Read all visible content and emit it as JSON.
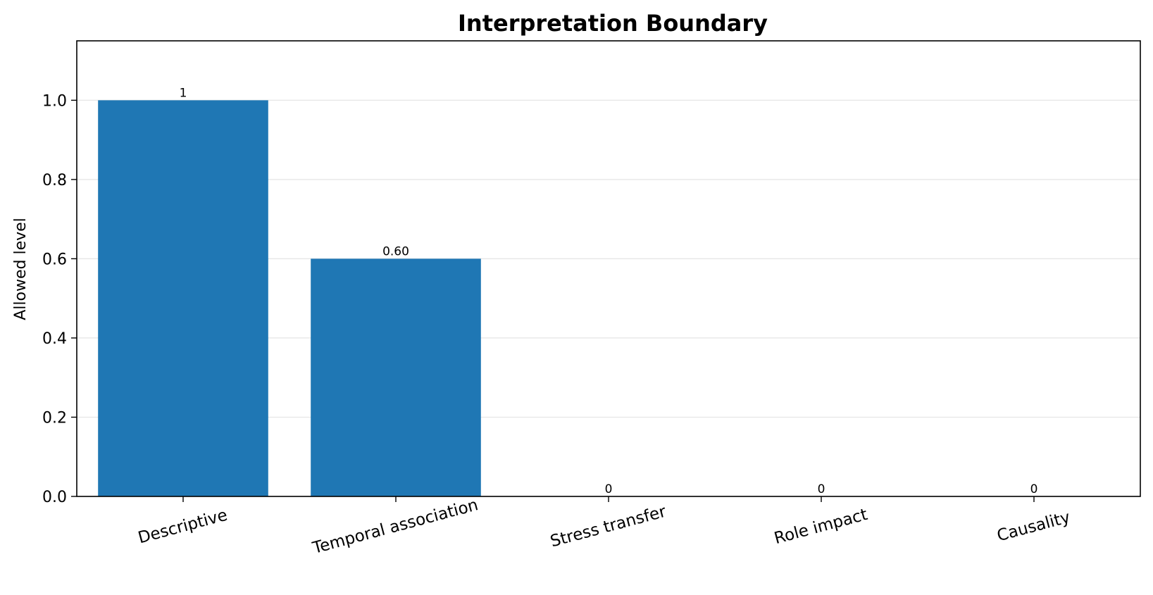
{
  "chart_data": {
    "type": "bar",
    "title": "Interpretation Boundary",
    "xlabel": "",
    "ylabel": "Allowed level",
    "categories": [
      "Descriptive",
      "Temporal association",
      "Stress transfer",
      "Role impact",
      "Causality"
    ],
    "values": [
      1.0,
      0.6,
      0.0,
      0.0,
      0.0
    ],
    "value_labels": [
      "1",
      "0.60",
      "0",
      "0",
      "0"
    ],
    "ylim": [
      0,
      1.15
    ],
    "yticks": [
      0.0,
      0.2,
      0.4,
      0.6,
      0.8,
      1.0
    ],
    "ytick_labels": [
      "0.0",
      "0.2",
      "0.4",
      "0.6",
      "0.8",
      "1.0"
    ],
    "bar_color": "#1f77b4",
    "grid": "horizontal",
    "grid_color": "#e6e6e6",
    "legend": "none"
  }
}
